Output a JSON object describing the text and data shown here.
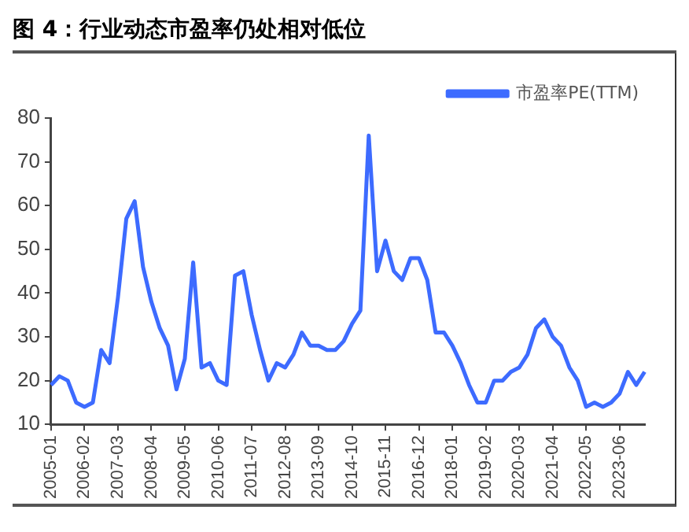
{
  "chart_data": {
    "type": "line",
    "title": "图 4：行业动态市盈率仍处相对低位",
    "categories": [
      "2005-01",
      null,
      null,
      null,
      "2006-02",
      null,
      null,
      null,
      "2007-03",
      null,
      null,
      null,
      "2008-04",
      null,
      null,
      null,
      "2009-05",
      null,
      null,
      null,
      "2010-06",
      null,
      null,
      null,
      "2011-07",
      null,
      null,
      null,
      "2012-08",
      null,
      null,
      null,
      "2013-09",
      null,
      null,
      null,
      "2014-10",
      null,
      null,
      null,
      "2015-11",
      null,
      null,
      null,
      "2016-12",
      null,
      null,
      null,
      "2018-01",
      null,
      null,
      null,
      "2019-02",
      null,
      null,
      null,
      "2020-03",
      null,
      null,
      null,
      "2021-04",
      null,
      null,
      null,
      "2022-05",
      null,
      null,
      null,
      "2023-06",
      null,
      null,
      null
    ],
    "series": [
      {
        "name": "市盈率PE(TTM)",
        "color": "#3d6bff",
        "values": [
          19,
          21,
          20,
          15,
          14,
          15,
          27,
          24,
          39,
          57,
          61,
          46,
          38,
          32,
          28,
          18,
          25,
          47,
          23,
          24,
          20,
          19,
          44,
          45,
          35,
          27,
          20,
          24,
          23,
          26,
          31,
          28,
          28,
          27,
          27,
          29,
          33,
          36,
          76,
          45,
          52,
          45,
          43,
          48,
          48,
          43,
          31,
          31,
          28,
          24,
          19,
          15,
          15,
          20,
          20,
          22,
          23,
          26,
          32,
          34,
          30,
          28,
          23,
          20,
          14,
          15,
          14,
          15,
          17,
          22,
          19,
          22
        ]
      }
    ],
    "ylim": [
      10,
      80
    ],
    "yticks": [
      10,
      20,
      30,
      40,
      50,
      60,
      70,
      80
    ],
    "grid": false,
    "legend": "top right"
  }
}
